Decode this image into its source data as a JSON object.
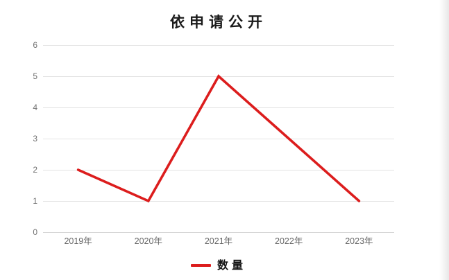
{
  "title": "依申请公开",
  "chart_data": {
    "type": "line",
    "title": "依申请公开",
    "categories": [
      "2019年",
      "2020年",
      "2021年",
      "2022年",
      "2023年"
    ],
    "series": [
      {
        "name": "数量",
        "color": "#dc1d1d",
        "values": [
          2,
          1,
          5,
          3,
          1
        ]
      }
    ],
    "xlabel": "",
    "ylabel": "",
    "ylim": [
      0,
      6
    ],
    "ytick_step": 1,
    "yticks": [
      0,
      1,
      2,
      3,
      4,
      5,
      6
    ],
    "grid": true,
    "legend_position": "bottom",
    "colors": {
      "series_red": "#dc1d1d",
      "gridline": "#e3e3e3",
      "axis_baseline": "#d6d6d6",
      "tick_label": "#6e6e6e",
      "title_text": "#1a1a1a",
      "background": "#ffffff"
    }
  },
  "legend": {
    "items": [
      {
        "label": "数量",
        "color": "#dc1d1d"
      }
    ]
  }
}
